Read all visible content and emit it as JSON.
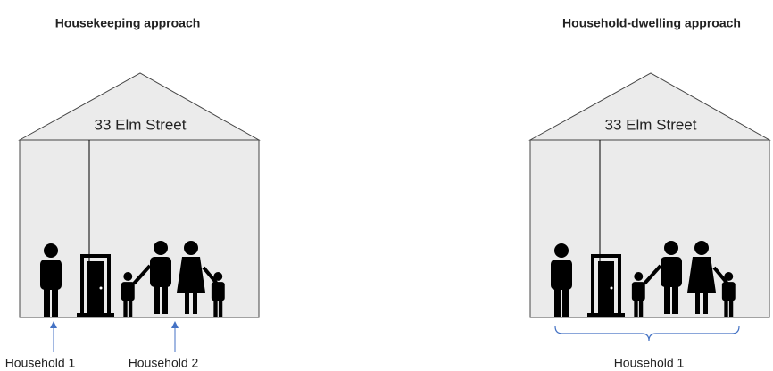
{
  "left": {
    "title": "Housekeeping approach",
    "address": "33 Elm Street",
    "labels": [
      "Household 1",
      "Household 2"
    ]
  },
  "right": {
    "title": "Household-dwelling approach",
    "address": "33 Elm Street",
    "labels": [
      "Household 1"
    ]
  }
}
